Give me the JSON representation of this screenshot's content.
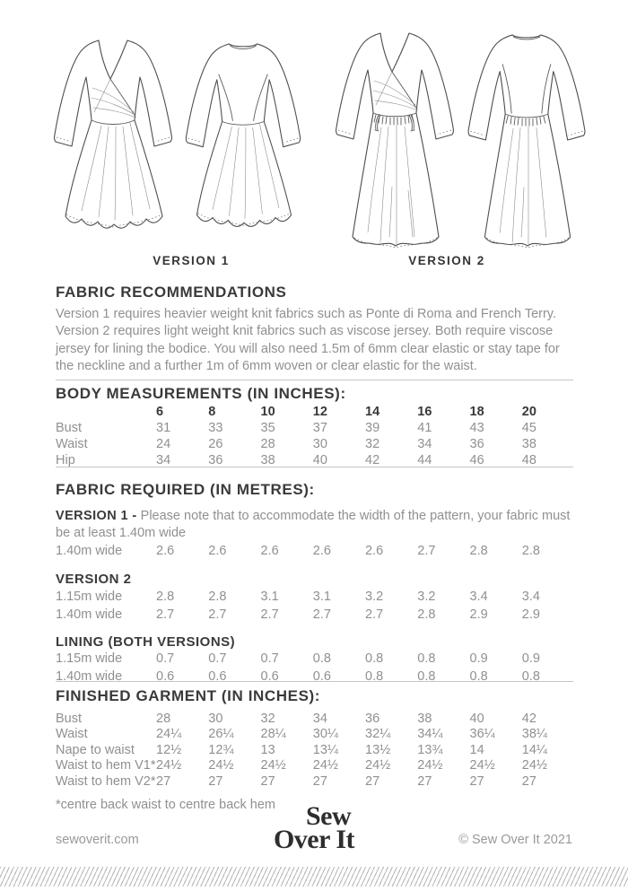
{
  "illustrations": {
    "version1_label": "VERSION 1",
    "version2_label": "VERSION 2"
  },
  "fabric_recommendations": {
    "heading": "FABRIC RECOMMENDATIONS",
    "body": "Version 1 requires heavier weight knit fabrics such as Ponte di Roma and French Terry. Version 2 requires light weight knit fabrics such as viscose jersey. Both require viscose jersey for lining the bodice. You will also need 1.5m of 6mm clear elastic or stay tape for the neckline and a further 1m of 6mm woven or clear elastic for the waist."
  },
  "body_measurements": {
    "heading": "BODY MEASUREMENTS (IN INCHES):",
    "sizes": [
      "6",
      "8",
      "10",
      "12",
      "14",
      "16",
      "18",
      "20"
    ],
    "rows": [
      {
        "label": "Bust",
        "values": [
          "31",
          "33",
          "35",
          "37",
          "39",
          "41",
          "43",
          "45"
        ]
      },
      {
        "label": "Waist",
        "values": [
          "24",
          "26",
          "28",
          "30",
          "32",
          "34",
          "36",
          "38"
        ]
      },
      {
        "label": "Hip",
        "values": [
          "34",
          "36",
          "38",
          "40",
          "42",
          "44",
          "46",
          "48"
        ]
      }
    ]
  },
  "fabric_required": {
    "heading": "FABRIC REQUIRED (IN METRES):",
    "version1_label": "VERSION 1 -",
    "version1_note": "Please note that to accommodate the width of the pattern, your fabric must be at least 1.40m wide",
    "version1_rows": [
      {
        "label": "1.40m wide",
        "values": [
          "2.6",
          "2.6",
          "2.6",
          "2.6",
          "2.6",
          "2.7",
          "2.8",
          "2.8"
        ]
      }
    ],
    "version2_label": "VERSION 2",
    "version2_rows": [
      {
        "label": "1.15m wide",
        "values": [
          "2.8",
          "2.8",
          "3.1",
          "3.1",
          "3.2",
          "3.2",
          "3.4",
          "3.4"
        ]
      },
      {
        "label": "1.40m wide",
        "values": [
          "2.7",
          "2.7",
          "2.7",
          "2.7",
          "2.7",
          "2.8",
          "2.9",
          "2.9"
        ]
      }
    ],
    "lining_label": "LINING (BOTH VERSIONS)",
    "lining_rows": [
      {
        "label": "1.15m wide",
        "values": [
          "0.7",
          "0.7",
          "0.7",
          "0.8",
          "0.8",
          "0.8",
          "0.9",
          "0.9"
        ]
      },
      {
        "label": "1.40m wide",
        "values": [
          "0.6",
          "0.6",
          "0.6",
          "0.6",
          "0.8",
          "0.8",
          "0.8",
          "0.8"
        ]
      }
    ]
  },
  "finished_garment": {
    "heading": "FINISHED GARMENT (IN INCHES):",
    "rows": [
      {
        "label": "Bust",
        "values": [
          "28",
          "30",
          "32",
          "34",
          "36",
          "38",
          "40",
          "42"
        ]
      },
      {
        "label": "Waist",
        "values": [
          "24¼",
          "26¼",
          "28¼",
          "30¼",
          "32¼",
          "34¼",
          "36¼",
          "38¼"
        ]
      },
      {
        "label": "Nape to waist",
        "values": [
          "12½",
          "12¾",
          "13",
          "13¼",
          "13½",
          "13¾",
          "14",
          "14¼"
        ]
      },
      {
        "label": "Waist to hem V1*",
        "values": [
          "24½",
          "24½",
          "24½",
          "24½",
          "24½",
          "24½",
          "24½",
          "24½"
        ]
      },
      {
        "label": "Waist to hem V2*",
        "values": [
          "27",
          "27",
          "27",
          "27",
          "27",
          "27",
          "27",
          "27"
        ]
      }
    ],
    "footnote": "*centre back waist to centre back hem"
  },
  "footer": {
    "website": "sewoverit.com",
    "logo_line1": "Sew",
    "logo_line2": "Over It",
    "copyright": "© Sew Over It 2021"
  },
  "colors": {
    "heading_text": "#3a3a3a",
    "body_text": "#909090",
    "divider": "#c6c6c6",
    "illustration_stroke": "#4d4d4d"
  }
}
